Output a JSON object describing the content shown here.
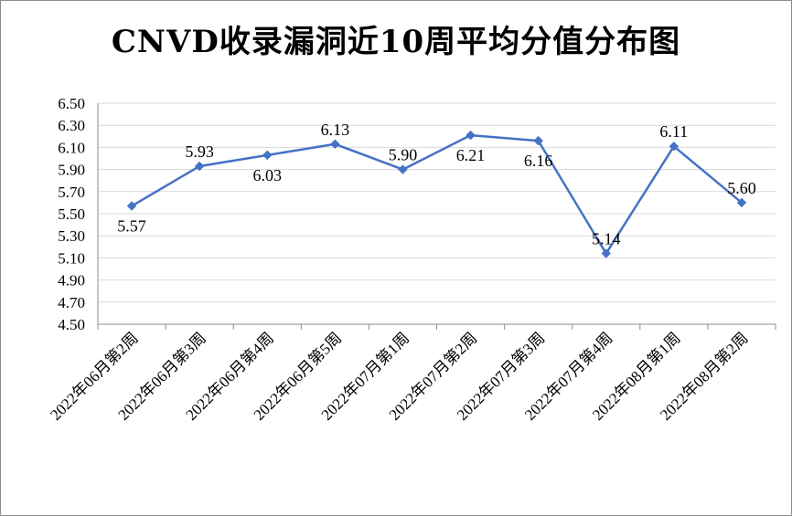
{
  "chart_data": {
    "type": "line",
    "title": "CNVD收录漏洞近10周平均分值分布图",
    "xlabel": "",
    "ylabel": "",
    "categories": [
      "2022年06月第2周",
      "2022年06月第3周",
      "2022年06月第4周",
      "2022年06月第5周",
      "2022年07月第1周",
      "2022年07月第2周",
      "2022年07月第3周",
      "2022年07月第4周",
      "2022年08月第1周",
      "2022年08月第2周"
    ],
    "series": [
      {
        "values": [
          5.57,
          5.93,
          6.03,
          6.13,
          5.9,
          6.21,
          6.16,
          5.14,
          6.11,
          5.6
        ],
        "labels": [
          "5.57",
          "5.93",
          "6.03",
          "6.13",
          "5.90",
          "6.21",
          "6.16",
          "5.14",
          "6.11",
          "5.60"
        ],
        "label_positions": [
          "below",
          "above",
          "below",
          "above",
          "above",
          "below",
          "below",
          "above",
          "above",
          "above"
        ],
        "color": "#4472c4"
      }
    ],
    "ylim": [
      4.5,
      6.5
    ],
    "yticks": [
      "4.50",
      "4.70",
      "4.90",
      "5.10",
      "5.30",
      "5.50",
      "5.70",
      "5.90",
      "6.10",
      "6.30",
      "6.50"
    ],
    "grid": true,
    "legend": "none",
    "gridline_color": "#d9d9d9",
    "axis_color": "#8c8c8c"
  }
}
